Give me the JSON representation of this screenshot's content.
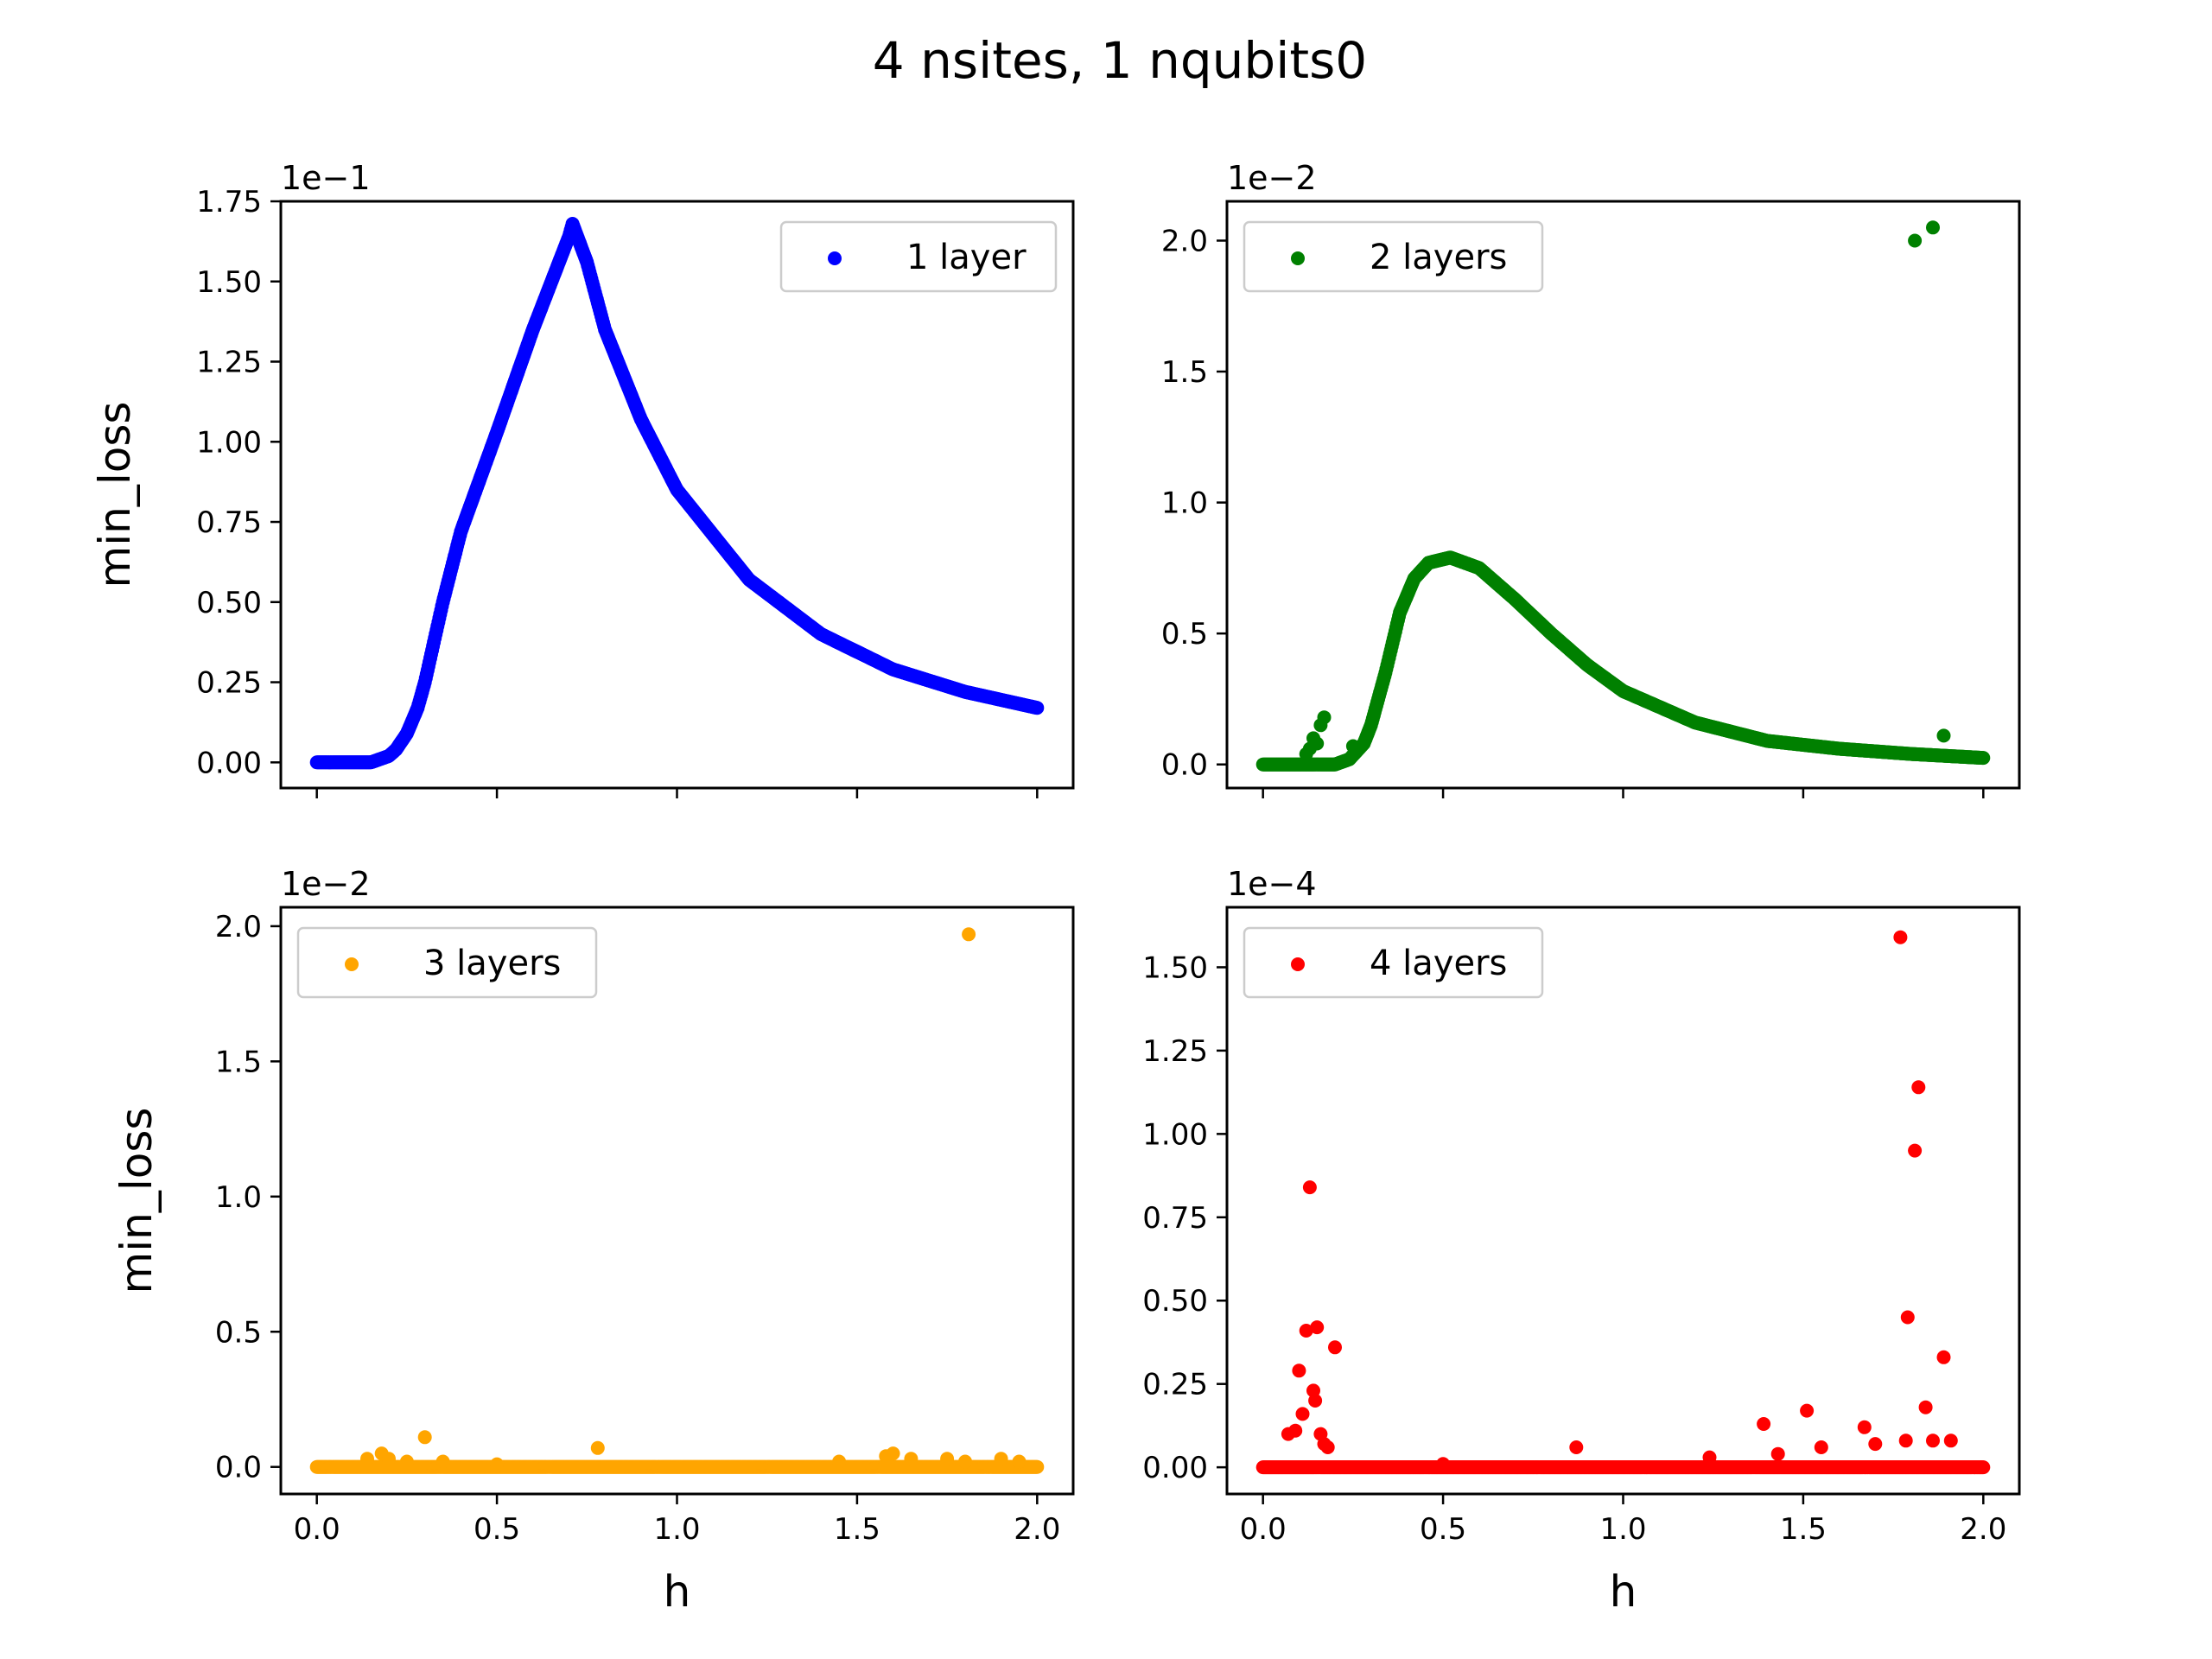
{
  "figure": {
    "title": "4 nsites, 1 nqubits0"
  },
  "chart_data": [
    {
      "type": "scatter",
      "legend": "1 layer",
      "legend_position": "upper right",
      "color": "#0000ff",
      "offset_text": "1e−1",
      "exponent": -1,
      "xlabel": "",
      "ylabel": "min_loss",
      "xlim": [
        -0.1,
        2.1
      ],
      "ylim": [
        -0.08,
        1.75
      ],
      "xticks": [
        0.0,
        0.5,
        1.0,
        1.5,
        2.0
      ],
      "xtick_labels": [
        "",
        "",
        "",
        "",
        ""
      ],
      "yticks": [
        0.0,
        0.25,
        0.5,
        0.75,
        1.0,
        1.25,
        1.5,
        1.75
      ],
      "ytick_labels": [
        "0.00",
        "0.25",
        "0.50",
        "0.75",
        "1.00",
        "1.25",
        "1.50",
        "1.75"
      ],
      "curve": {
        "x": [
          0.0,
          0.15,
          0.2,
          0.22,
          0.25,
          0.28,
          0.3,
          0.35,
          0.4,
          0.5,
          0.6,
          0.7,
          0.71,
          0.75,
          0.8,
          0.9,
          1.0,
          1.2,
          1.4,
          1.6,
          1.8,
          2.0
        ],
        "y": [
          0.0,
          0.0,
          0.02,
          0.04,
          0.09,
          0.17,
          0.25,
          0.5,
          0.72,
          1.03,
          1.35,
          1.64,
          1.68,
          1.56,
          1.35,
          1.07,
          0.85,
          0.57,
          0.4,
          0.29,
          0.22,
          0.17
        ]
      },
      "outliers": {
        "x": [],
        "y": []
      }
    },
    {
      "type": "scatter",
      "legend": "2 layers",
      "legend_position": "upper left",
      "color": "#008000",
      "offset_text": "1e−2",
      "exponent": -2,
      "xlabel": "",
      "ylabel": "",
      "xlim": [
        -0.1,
        2.1
      ],
      "ylim": [
        -0.09,
        2.15
      ],
      "xticks": [
        0.0,
        0.5,
        1.0,
        1.5,
        2.0
      ],
      "xtick_labels": [
        "",
        "",
        "",
        "",
        ""
      ],
      "yticks": [
        0.0,
        0.5,
        1.0,
        1.5,
        2.0
      ],
      "ytick_labels": [
        "0.0",
        "0.5",
        "1.0",
        "1.5",
        "2.0"
      ],
      "curve": {
        "x": [
          0.0,
          0.2,
          0.24,
          0.28,
          0.3,
          0.34,
          0.38,
          0.42,
          0.46,
          0.52,
          0.6,
          0.7,
          0.8,
          0.9,
          1.0,
          1.2,
          1.4,
          1.6,
          1.8,
          2.0
        ],
        "y": [
          0.0,
          0.0,
          0.02,
          0.08,
          0.15,
          0.35,
          0.58,
          0.71,
          0.77,
          0.79,
          0.75,
          0.63,
          0.5,
          0.38,
          0.28,
          0.16,
          0.09,
          0.06,
          0.04,
          0.025
        ]
      },
      "outliers": {
        "x": [
          0.12,
          0.13,
          0.14,
          0.15,
          0.16,
          0.17,
          0.25,
          1.81,
          1.86,
          1.89
        ],
        "y": [
          0.04,
          0.06,
          0.1,
          0.08,
          0.15,
          0.18,
          0.07,
          2.0,
          2.05,
          0.11
        ]
      }
    },
    {
      "type": "scatter",
      "legend": "3 layers",
      "legend_position": "upper left",
      "color": "#ffa500",
      "offset_text": "1e−2",
      "exponent": -2,
      "xlabel": "h",
      "ylabel": "min_loss",
      "xlim": [
        -0.1,
        2.1
      ],
      "ylim": [
        -0.1,
        2.07
      ],
      "xticks": [
        0.0,
        0.5,
        1.0,
        1.5,
        2.0
      ],
      "xtick_labels": [
        "0.0",
        "0.5",
        "1.0",
        "1.5",
        "2.0"
      ],
      "yticks": [
        0.0,
        0.5,
        1.0,
        1.5,
        2.0
      ],
      "ytick_labels": [
        "0.0",
        "0.5",
        "1.0",
        "1.5",
        "2.0"
      ],
      "curve": {
        "x": [
          0.0,
          2.0
        ],
        "y": [
          0.0,
          0.0
        ]
      },
      "outliers": {
        "x": [
          0.14,
          0.18,
          0.2,
          0.25,
          0.3,
          0.35,
          0.5,
          0.78,
          1.45,
          1.58,
          1.6,
          1.65,
          1.75,
          1.8,
          1.81,
          1.9,
          1.95
        ],
        "y": [
          0.03,
          0.05,
          0.03,
          0.02,
          0.11,
          0.02,
          0.01,
          0.07,
          0.02,
          0.04,
          0.05,
          0.03,
          0.03,
          0.02,
          1.97,
          0.03,
          0.02
        ]
      }
    },
    {
      "type": "scatter",
      "legend": "4 layers",
      "legend_position": "upper left",
      "color": "#ff0000",
      "offset_text": "1e−4",
      "exponent": -4,
      "xlabel": "h",
      "ylabel": "",
      "xlim": [
        -0.1,
        2.1
      ],
      "ylim": [
        -0.08,
        1.68
      ],
      "xticks": [
        0.0,
        0.5,
        1.0,
        1.5,
        2.0
      ],
      "xtick_labels": [
        "0.0",
        "0.5",
        "1.0",
        "1.5",
        "2.0"
      ],
      "yticks": [
        0.0,
        0.25,
        0.5,
        0.75,
        1.0,
        1.25,
        1.5
      ],
      "ytick_labels": [
        "0.00",
        "0.25",
        "0.50",
        "0.75",
        "1.00",
        "1.25",
        "1.50"
      ],
      "curve": {
        "x": [
          0.0,
          2.0
        ],
        "y": [
          0.0,
          0.0
        ]
      },
      "outliers": {
        "x": [
          0.07,
          0.09,
          0.1,
          0.11,
          0.12,
          0.13,
          0.14,
          0.145,
          0.15,
          0.16,
          0.17,
          0.18,
          0.2,
          0.5,
          0.87,
          1.24,
          1.39,
          1.43,
          1.51,
          1.55,
          1.67,
          1.7,
          1.77,
          1.785,
          1.79,
          1.81,
          1.82,
          1.84,
          1.86,
          1.89,
          1.91
        ],
        "y": [
          0.1,
          0.11,
          0.29,
          0.16,
          0.41,
          0.84,
          0.23,
          0.2,
          0.42,
          0.1,
          0.07,
          0.06,
          0.36,
          0.01,
          0.06,
          0.03,
          0.13,
          0.04,
          0.17,
          0.06,
          0.12,
          0.07,
          1.59,
          0.08,
          0.45,
          0.95,
          1.14,
          0.18,
          0.08,
          0.33,
          0.08
        ]
      }
    }
  ]
}
